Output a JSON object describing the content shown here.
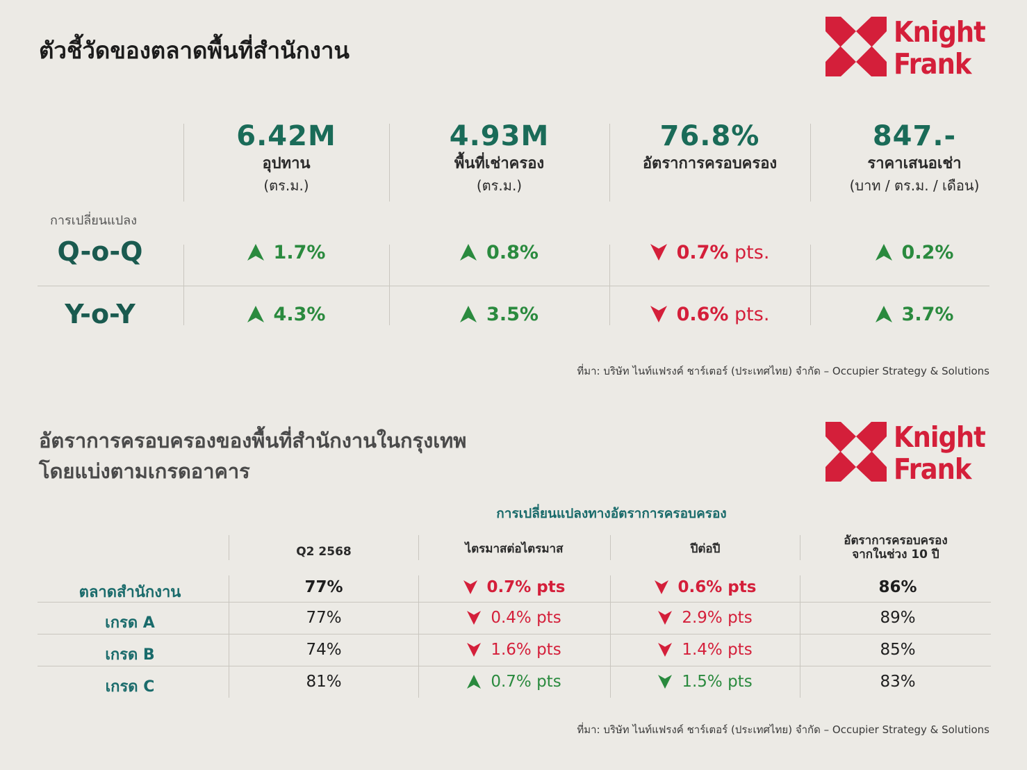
{
  "brand": {
    "line1": "Knight",
    "line2": "Frank",
    "color": "#d41f3a"
  },
  "section1": {
    "title": "ตัวชี้วัดของตลาดพื้นที่สำนักงาน",
    "change_label": "การเปลี่ยนแปลง",
    "metrics": [
      {
        "value": "6.42M",
        "label": "อุปทาน",
        "unit": "(ตร.ม.)"
      },
      {
        "value": "4.93M",
        "label": "พื้นที่เช่าครอง",
        "unit": "(ตร.ม.)"
      },
      {
        "value": "76.8%",
        "label": "อัตราการครอบครอง",
        "unit": ""
      },
      {
        "value": "847.-",
        "label": "ราคาเสนอเช่า",
        "unit": "(บาท / ตร.ม. / เดือน)"
      }
    ],
    "rows": [
      {
        "label": "Q-o-Q",
        "cells": [
          {
            "dir": "up",
            "value": "1.7%",
            "suffix": ""
          },
          {
            "dir": "up",
            "value": "0.8%",
            "suffix": ""
          },
          {
            "dir": "down",
            "value": "0.7%",
            "suffix": " pts."
          },
          {
            "dir": "up",
            "value": "0.2%",
            "suffix": ""
          }
        ]
      },
      {
        "label": "Y-o-Y",
        "cells": [
          {
            "dir": "up",
            "value": "4.3%",
            "suffix": ""
          },
          {
            "dir": "up",
            "value": "3.5%",
            "suffix": ""
          },
          {
            "dir": "down",
            "value": "0.6%",
            "suffix": " pts."
          },
          {
            "dir": "up",
            "value": "3.7%",
            "suffix": ""
          }
        ]
      }
    ],
    "source": "ที่มา: บริษัท ไนท์แฟรงค์ ชาร์เตอร์ (ประเทศไทย) จำกัด – Occupier Strategy & Solutions"
  },
  "section2": {
    "title_line1": "อัตราการครอบครองของพื้นที่สำนักงานในกรุงเทพ",
    "title_line2": "โดยแบ่งตามเกรดอาคาร",
    "subheader": "การเปลี่ยนแปลงทางอัตราการครอบครอง",
    "headers": {
      "q": "Q2 2568",
      "qoq": "ไตรมาสต่อไตรมาส",
      "yoy": "ปีต่อปี",
      "ten_line1": "อัตราการครอบครอง",
      "ten_line2": "จากในช่วง 10 ปี"
    },
    "rows": [
      {
        "label": "ตลาดสำนักงาน",
        "bold": true,
        "q": "77%",
        "qoq_dir": "down",
        "qoq": "0.7% pts",
        "yoy_dir": "down",
        "yoy": "0.6% pts",
        "ten": "86%"
      },
      {
        "label": "เกรด A",
        "bold": false,
        "q": "77%",
        "qoq_dir": "down",
        "qoq": "0.4% pts",
        "yoy_dir": "down",
        "yoy": "2.9% pts",
        "ten": "89%"
      },
      {
        "label": "เกรด B",
        "bold": false,
        "q": "74%",
        "qoq_dir": "down",
        "qoq": "1.6% pts",
        "yoy_dir": "down",
        "yoy": "1.4% pts",
        "ten": "85%"
      },
      {
        "label": "เกรด C",
        "bold": false,
        "q": "81%",
        "qoq_dir": "up",
        "qoq": "0.7% pts",
        "yoy_dir": "down-green",
        "yoy": "1.5% pts",
        "ten": "83%"
      }
    ],
    "source": "ที่มา: บริษัท ไนท์แฟรงค์ ชาร์เตอร์ (ประเทศไทย) จำกัด – Occupier Strategy & Solutions"
  }
}
